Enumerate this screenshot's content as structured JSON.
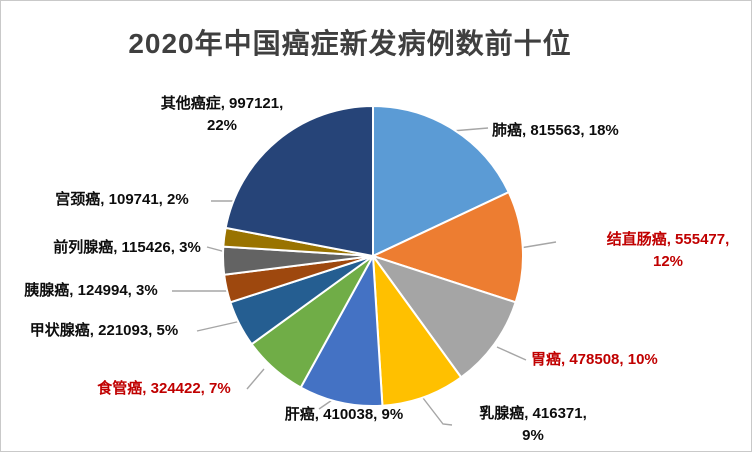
{
  "title": "2020年中国癌症新发病例数前十位",
  "colors": {
    "background": "#FFFFFF",
    "frame_border": "#C9C9C9",
    "title_text": "#3F3F3F",
    "label_default": "#0D0D0D",
    "label_highlight": "#C00000",
    "leader_line": "#A6A6A6",
    "slice_border": "#FFFFFF"
  },
  "chart_data": {
    "type": "pie",
    "title": "2020年中国癌症新发病例数前十位",
    "legend_position": "none",
    "start_angle_deg": 0,
    "direction": "clockwise",
    "label_format": "{name}, {value}, {pct}%",
    "slices": [
      {
        "name": "肺癌",
        "value": 815563,
        "pct": 18,
        "color": "#5B9BD5",
        "label_color": "#0D0D0D"
      },
      {
        "name": "结直肠癌",
        "value": 555477,
        "pct": 12,
        "color": "#ED7D31",
        "label_color": "#C00000"
      },
      {
        "name": "胃癌",
        "value": 478508,
        "pct": 10,
        "color": "#A5A5A5",
        "label_color": "#C00000"
      },
      {
        "name": "乳腺癌",
        "value": 416371,
        "pct": 9,
        "color": "#FFC000",
        "label_color": "#0D0D0D"
      },
      {
        "name": "肝癌",
        "value": 410038,
        "pct": 9,
        "color": "#4472C4",
        "label_color": "#0D0D0D"
      },
      {
        "name": "食管癌",
        "value": 324422,
        "pct": 7,
        "color": "#70AD47",
        "label_color": "#C00000"
      },
      {
        "name": "甲状腺癌",
        "value": 221093,
        "pct": 5,
        "color": "#255E91",
        "label_color": "#0D0D0D"
      },
      {
        "name": "胰腺癌",
        "value": 124994,
        "pct": 3,
        "color": "#9E480E",
        "label_color": "#0D0D0D"
      },
      {
        "name": "前列腺癌",
        "value": 115426,
        "pct": 3,
        "color": "#636363",
        "label_color": "#0D0D0D"
      },
      {
        "name": "宫颈癌",
        "value": 109741,
        "pct": 2,
        "color": "#997300",
        "label_color": "#0D0D0D"
      },
      {
        "name": "其他癌症",
        "value": 997121,
        "pct": 22,
        "color": "#264478",
        "label_color": "#0D0D0D"
      }
    ]
  }
}
